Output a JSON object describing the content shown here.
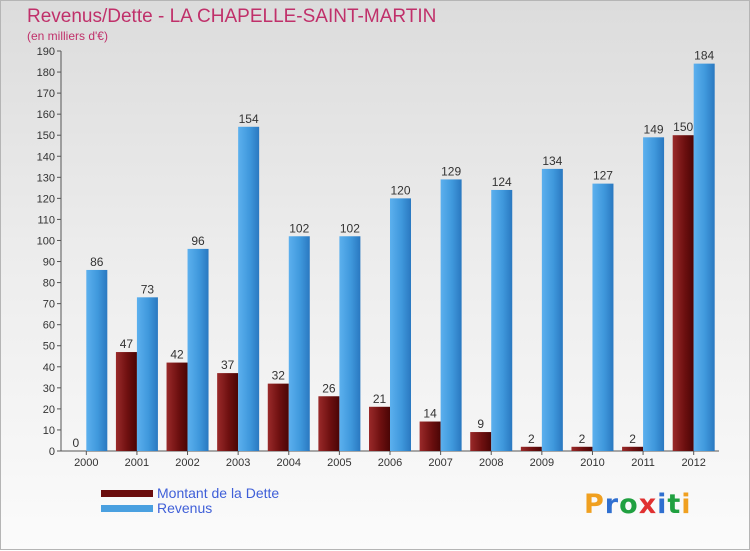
{
  "title": "Revenus/Dette - LA CHAPELLE-SAINT-MARTIN",
  "subtitle": "(en milliers d'€)",
  "colors": {
    "title": "#c0306a",
    "dette": "#7a1a1a",
    "revenus": "#4aa0e0",
    "legend_text": "#3f5fd8"
  },
  "legend": [
    {
      "label": "Montant de la Dette",
      "color": "#6b0d0d"
    },
    {
      "label": "Revenus",
      "color": "#4aa0e0"
    }
  ],
  "logo": {
    "text": "Proxiti",
    "colors": [
      "#f0a020",
      "#2f6fd0",
      "#20a040",
      "#e03030",
      "#2f6fd0",
      "#20a040",
      "#f0a020"
    ]
  },
  "chart_data": {
    "type": "bar",
    "title": "Revenus/Dette - LA CHAPELLE-SAINT-MARTIN",
    "subtitle": "(en milliers d'€)",
    "categories": [
      "2000",
      "2001",
      "2002",
      "2003",
      "2004",
      "2005",
      "2006",
      "2007",
      "2008",
      "2009",
      "2010",
      "2011",
      "2012"
    ],
    "series": [
      {
        "name": "Montant de la Dette",
        "values": [
          0,
          47,
          42,
          37,
          32,
          26,
          21,
          14,
          9,
          2,
          2,
          2,
          150
        ]
      },
      {
        "name": "Revenus",
        "values": [
          86,
          73,
          96,
          154,
          102,
          102,
          120,
          129,
          124,
          134,
          127,
          149,
          184
        ]
      }
    ],
    "ylim": [
      0,
      190
    ],
    "yticks": [
      0,
      10,
      20,
      30,
      40,
      50,
      60,
      70,
      80,
      90,
      100,
      110,
      120,
      130,
      140,
      150,
      160,
      170,
      180,
      190
    ],
    "grid": false,
    "legend_position": "bottom-left",
    "data_labels": true
  }
}
